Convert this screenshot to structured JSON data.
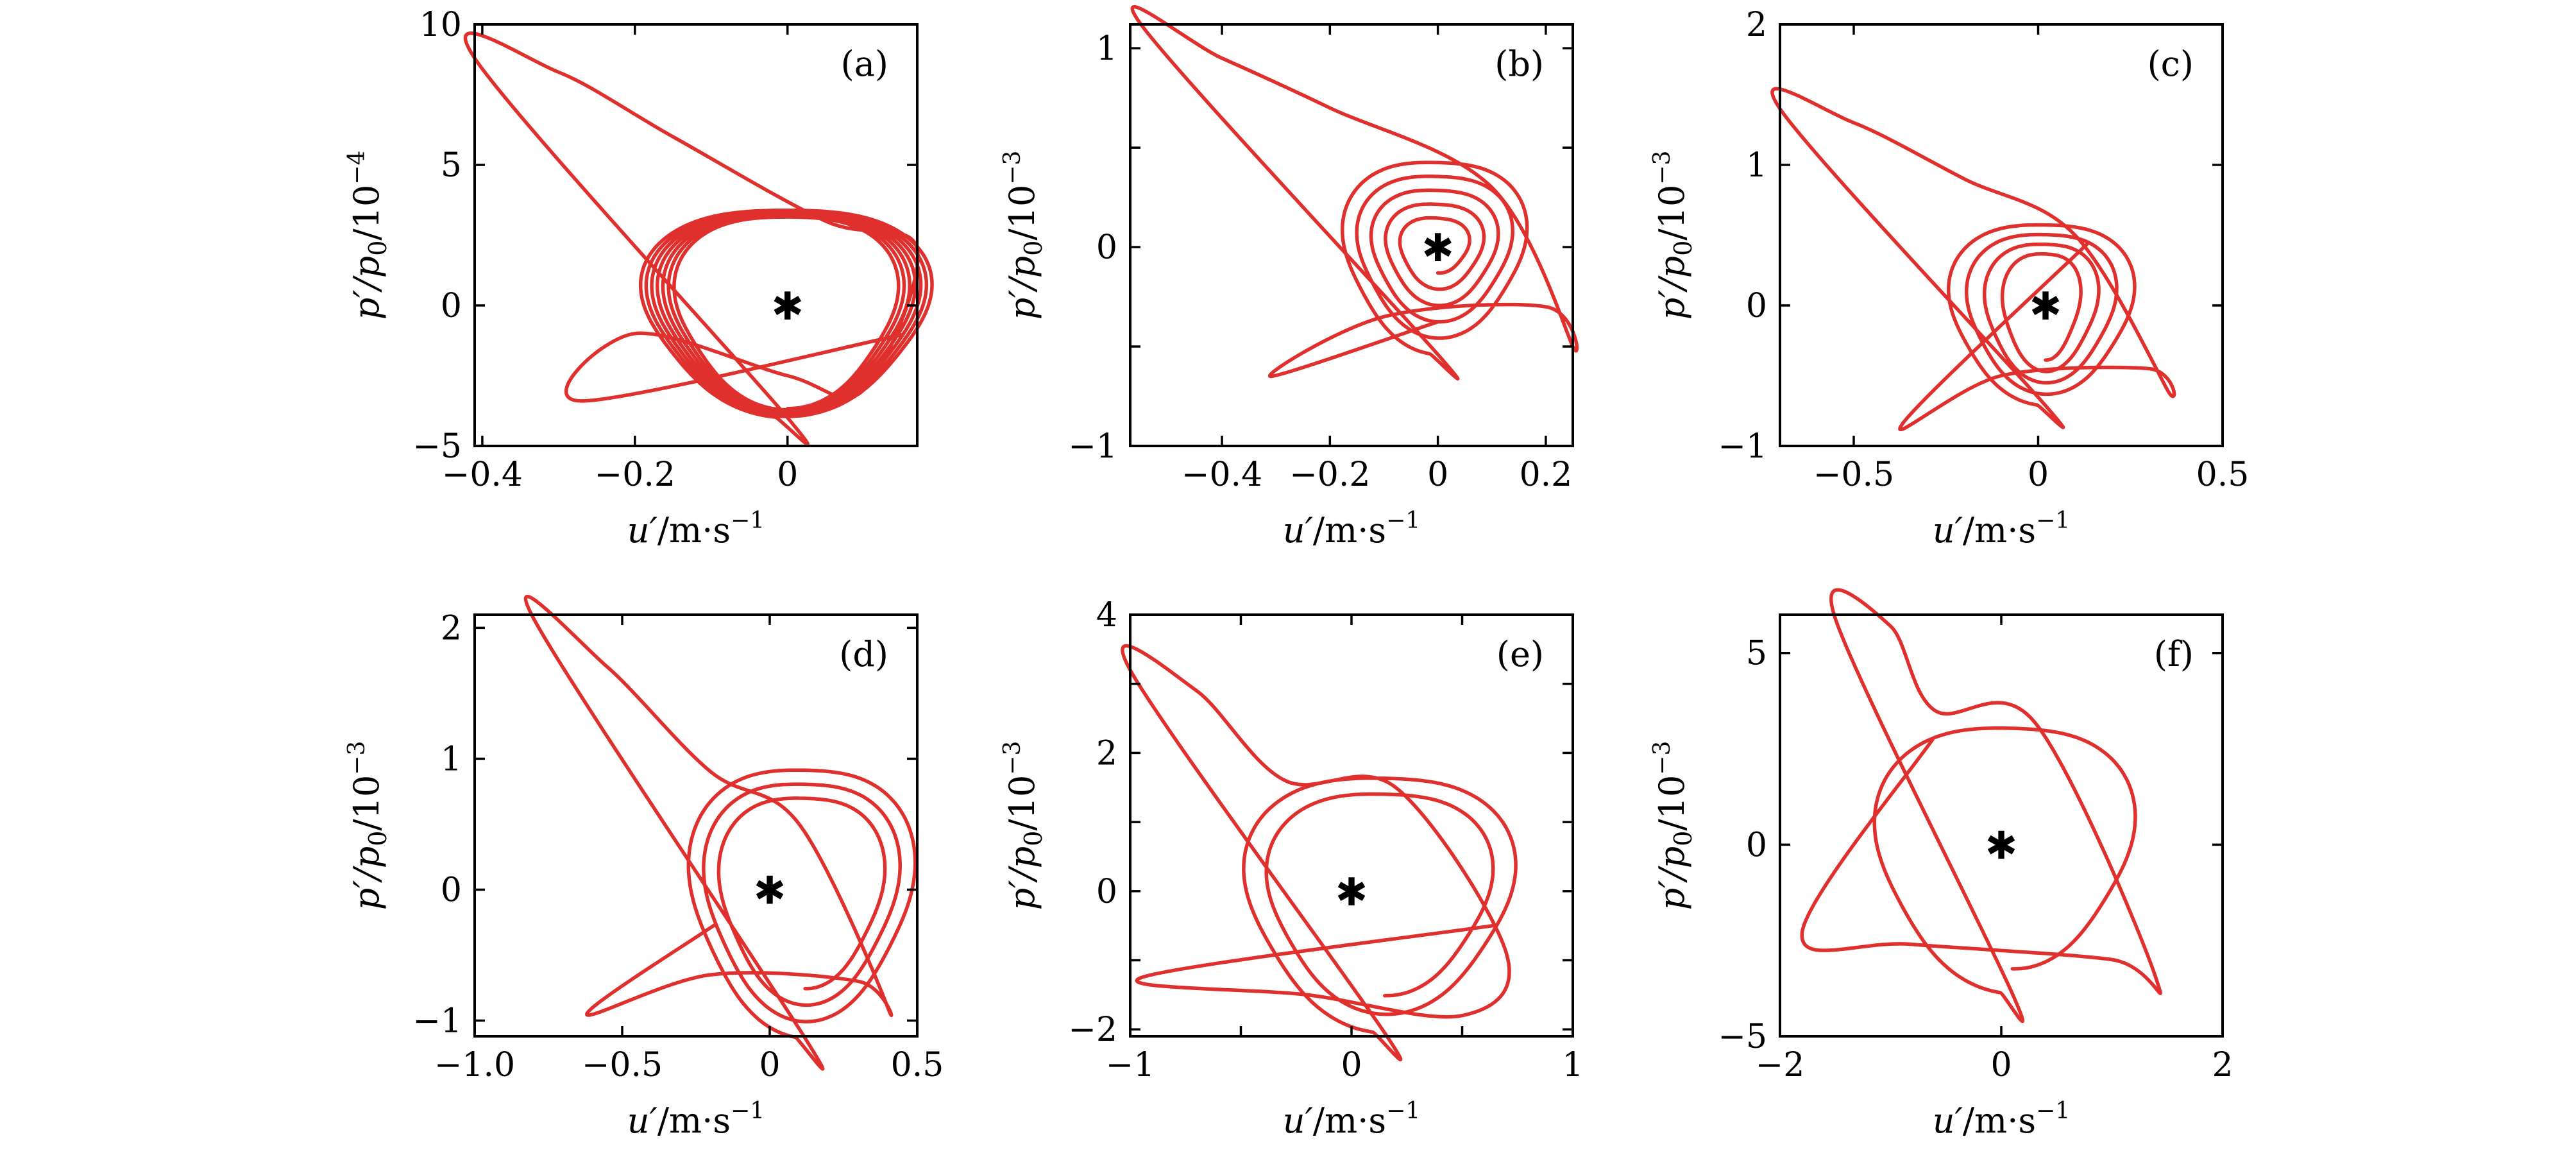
{
  "figure": {
    "ylabel_prefix": "p′/p",
    "ylabel_sub": "0",
    "ylabel_suffix": "/10",
    "xlabel_main": "u′",
    "xlabel_units": "/m·s",
    "xlabel_exp": "−1",
    "line_color": "#e0302e",
    "fixed_point_marker": "✱"
  },
  "chart_data": [
    {
      "type": "line",
      "panel": "(a)",
      "ylabel_exp": "−4",
      "xlim": [
        -0.41,
        0.17
      ],
      "ylim": [
        -5,
        10
      ],
      "xticks": [
        -0.4,
        -0.2,
        0,
        0.2
      ],
      "xticklabels": [
        "−0.4",
        "−0.2",
        "0",
        ""
      ],
      "yticks": [
        -5,
        0,
        5,
        10
      ],
      "yticklabels": [
        "−5",
        "0",
        "5",
        "10"
      ],
      "fixed_point": [
        0,
        0
      ],
      "spiral": {
        "center": [
          0.0,
          0.0
        ],
        "r0": [
          0.0,
          0.0
        ],
        "a": [
          -0.1,
          -1.7
        ],
        "turns": 7,
        "rx1": 0.14,
        "ry1": 3.4,
        "rx_out": 0.19,
        "ry_out": 3.7
      },
      "series": [
        {
          "x": [
            -0.41,
            -0.3,
            -0.15,
            0.05,
            0.17,
            0.1,
            0.0,
            -0.2,
            -0.27
          ],
          "y": [
            8.8,
            8.3,
            6.0,
            3.0,
            2.0,
            -3.0,
            -2.5,
            -1.0,
            -3.4
          ]
        }
      ]
    },
    {
      "type": "line",
      "panel": "(b)",
      "ylabel_exp": "−3",
      "xlim": [
        -0.57,
        0.25
      ],
      "ylim": [
        -1,
        1.12
      ],
      "xticks": [
        -0.4,
        -0.2,
        0,
        0.2
      ],
      "xticklabels": [
        "−0.4",
        "−0.2",
        "0",
        "0.2"
      ],
      "yticks": [
        -1,
        -0.5,
        0,
        0.5,
        1
      ],
      "yticklabels": [
        "−1",
        "",
        "0",
        "",
        "1"
      ],
      "fixed_point": [
        0,
        0
      ],
      "spiral": {
        "center": [
          0.0,
          0.0
        ],
        "r0": [
          0.0,
          0.0
        ],
        "a": [
          -0.03,
          -0.15
        ],
        "turns": 5,
        "rx1": 0.05,
        "ry1": 0.12,
        "rx_out": 0.18,
        "ry_out": 0.5
      },
      "series": [
        {
          "x": [
            -0.55,
            -0.4,
            -0.2,
            0.1,
            0.25,
            0.2,
            -0.1,
            -0.31
          ],
          "y": [
            1.12,
            0.95,
            0.7,
            0.3,
            -0.5,
            -0.3,
            -0.35,
            -0.65
          ]
        }
      ]
    },
    {
      "type": "line",
      "panel": "(c)",
      "ylabel_exp": "−3",
      "xlim": [
        -0.7,
        0.5
      ],
      "ylim": [
        -1,
        2
      ],
      "xticks": [
        -0.5,
        0,
        0.5
      ],
      "xticklabels": [
        "−0.5",
        "0",
        "0.5"
      ],
      "yticks": [
        -1,
        0,
        1,
        2
      ],
      "yticklabels": [
        "−1",
        "0",
        "1",
        "2"
      ],
      "fixed_point": [
        0.02,
        0
      ],
      "spiral": {
        "center": [
          0.02,
          0.0
        ],
        "r0": [
          0.0,
          0.0
        ],
        "a": [
          -0.03,
          -0.13
        ],
        "turns": 4,
        "rx1": 0.08,
        "ry1": 0.36,
        "rx_out": 0.27,
        "ry_out": 0.66
      },
      "series": [
        {
          "x": [
            -0.7,
            -0.5,
            -0.2,
            0.1,
            0.35,
            0.3,
            -0.1,
            -0.37
          ],
          "y": [
            1.4,
            1.3,
            0.9,
            0.5,
            -0.6,
            -0.45,
            -0.5,
            -0.85
          ]
        }
      ]
    },
    {
      "type": "line",
      "panel": "(d)",
      "ylabel_exp": "−3",
      "xlim": [
        -1.0,
        0.5
      ],
      "ylim": [
        -1.12,
        2.1
      ],
      "xticks": [
        -1.0,
        -0.5,
        0,
        0.5
      ],
      "xticklabels": [
        "−1.0",
        "−0.5",
        "0",
        "0.5"
      ],
      "yticks": [
        -1,
        0,
        1,
        2
      ],
      "yticklabels": [
        "−1",
        "0",
        "1",
        "2"
      ],
      "fixed_point": [
        0,
        0
      ],
      "spiral": {
        "center": [
          0.12,
          0.0
        ],
        "r0": [
          0.0,
          0.0
        ],
        "a": [
          -0.08,
          -0.3
        ],
        "turns": 3,
        "rx1": 0.25,
        "ry1": 0.7,
        "rx_out": 0.4,
        "ry_out": 1.05
      },
      "series": [
        {
          "x": [
            -0.8,
            -0.55,
            -0.2,
            0.1,
            0.4,
            0.3,
            -0.2,
            -0.62
          ],
          "y": [
            2.07,
            1.7,
            0.9,
            0.5,
            -0.9,
            -0.7,
            -0.65,
            -0.95
          ]
        }
      ]
    },
    {
      "type": "line",
      "panel": "(e)",
      "ylabel_exp": "−3",
      "xlim": [
        -1.0,
        1.0
      ],
      "ylim": [
        -2.1,
        4
      ],
      "xticks": [
        -1,
        -0.5,
        0,
        0.5,
        1
      ],
      "xticklabels": [
        "−1",
        "",
        "0",
        "",
        "1"
      ],
      "yticks": [
        -2,
        -1,
        0,
        1,
        2,
        3,
        4
      ],
      "yticklabels": [
        "−2",
        "",
        "0",
        "",
        "2",
        "",
        "4"
      ],
      "fixed_point": [
        0,
        0
      ],
      "spiral": {
        "center": [
          0.15,
          0.0
        ],
        "r0": [
          0.0,
          0.0
        ],
        "a": [
          -0.05,
          -0.3
        ],
        "turns": 2,
        "rx1": 0.45,
        "ry1": 1.4,
        "rx_out": 0.65,
        "ry_out": 1.9
      },
      "series": [
        {
          "x": [
            -1.0,
            -0.7,
            -0.3,
            0.2,
            0.7,
            0.5,
            -0.2,
            -0.95
          ],
          "y": [
            3.2,
            2.9,
            1.6,
            1.5,
            -0.9,
            -1.8,
            -1.5,
            -1.25
          ]
        }
      ]
    },
    {
      "type": "line",
      "panel": "(f)",
      "ylabel_exp": "−3",
      "xlim": [
        -2,
        2
      ],
      "ylim": [
        -5,
        6
      ],
      "xticks": [
        -2,
        0,
        2
      ],
      "xticklabels": [
        "−2",
        "0",
        "2"
      ],
      "yticks": [
        -5,
        0,
        5
      ],
      "yticklabels": [
        "−5",
        "0",
        "5"
      ],
      "fixed_point": [
        0,
        0
      ],
      "spiral": {
        "center": [
          0.1,
          0.0
        ],
        "r0": [
          0.0,
          0.0
        ],
        "a": [
          -0.3,
          -0.8
        ],
        "turns": 1,
        "rx1": 1.0,
        "ry1": 3.0,
        "rx_out": 1.3,
        "ry_out": 3.6
      },
      "series": [
        {
          "x": [
            -1.5,
            -1.0,
            -0.6,
            0.3,
            1.4,
            1.0,
            -0.8,
            -1.8
          ],
          "y": [
            5.9,
            5.7,
            3.5,
            3.2,
            -3.5,
            -3.0,
            -2.6,
            -2.3
          ]
        }
      ]
    }
  ]
}
